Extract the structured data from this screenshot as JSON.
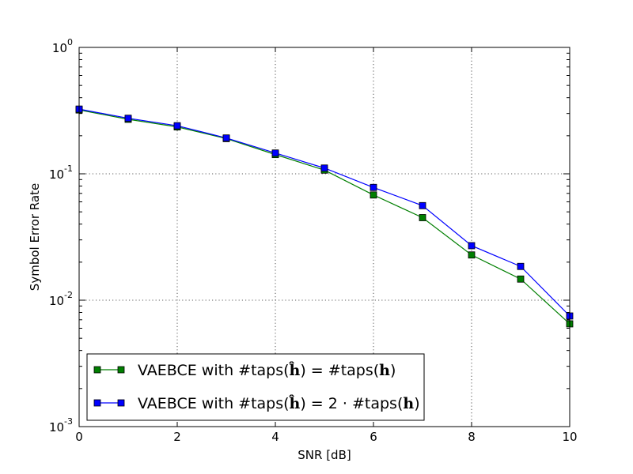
{
  "chart_data": {
    "type": "line",
    "xlabel": "SNR [dB]",
    "ylabel": "Symbol Error Rate",
    "xlim": [
      0,
      10
    ],
    "ylim": [
      0.001,
      1
    ],
    "yscale": "log",
    "grid": true,
    "legend_position": "lower-left",
    "x_ticks": [
      "0",
      "2",
      "4",
      "6",
      "8",
      "10"
    ],
    "y_ticks": [
      {
        "value": 1,
        "base": "10",
        "exp": "0"
      },
      {
        "value": 0.1,
        "base": "10",
        "exp": "-1"
      },
      {
        "value": 0.01,
        "base": "10",
        "exp": "-2"
      },
      {
        "value": 0.001,
        "base": "10",
        "exp": "-3"
      }
    ],
    "x": [
      0,
      1,
      2,
      3,
      4,
      5,
      6,
      7,
      8,
      9,
      10
    ],
    "series": [
      {
        "name": "VAEBCE with #taps(ĥ) = #taps(h)",
        "legend_prefix": "VAEBCE with #taps(",
        "legend_mid": ") = #taps(",
        "legend_suffix": ")",
        "color": "#007f00",
        "values": [
          0.32,
          0.27,
          0.235,
          0.19,
          0.142,
          0.107,
          0.068,
          0.045,
          0.0228,
          0.0147,
          0.0065
        ]
      },
      {
        "name": "VAEBCE with #taps(ĥ) = 2 · #taps(h)",
        "legend_prefix": "VAEBCE with #taps(",
        "legend_mid": ") = 2 · #taps(",
        "legend_suffix": ")",
        "color": "#0000ff",
        "values": [
          0.325,
          0.275,
          0.24,
          0.192,
          0.146,
          0.111,
          0.078,
          0.056,
          0.027,
          0.0185,
          0.0075
        ]
      }
    ]
  }
}
